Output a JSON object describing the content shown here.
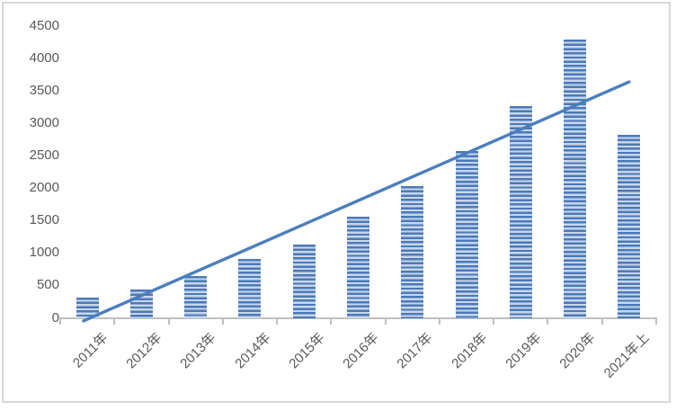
{
  "chart_data": {
    "type": "bar",
    "title": "",
    "xlabel": "",
    "ylabel": "",
    "categories": [
      "2011年",
      "2012年",
      "2013年",
      "2014年",
      "2015年",
      "2016年",
      "2017年",
      "2018年",
      "2019年",
      "2020年",
      "2021年上"
    ],
    "values": [
      320,
      450,
      650,
      920,
      1130,
      1570,
      2035,
      2570,
      3265,
      4290,
      2825
    ],
    "ylim": [
      0,
      4500
    ],
    "ytick_step": 500,
    "yticks": [
      0,
      500,
      1000,
      1500,
      2000,
      2500,
      3000,
      3500,
      4000,
      4500
    ],
    "grid": false,
    "legend": "none",
    "bar_style": "horizontal-stripes",
    "trendline": {
      "type": "linear",
      "start": {
        "cat_index": -0.07,
        "value": -40
      },
      "end": {
        "cat_index": 10.0,
        "value": 3640
      }
    }
  },
  "colors": {
    "bar_stripe_dark": "#4C79B7",
    "bar_stripe_light": "#C6D7ED",
    "trendline": "#4B7EBE",
    "axis": "#BFBFBF",
    "tick_label": "#595959",
    "frame_border": "#D8D8D8",
    "background": "#FFFFFF"
  }
}
